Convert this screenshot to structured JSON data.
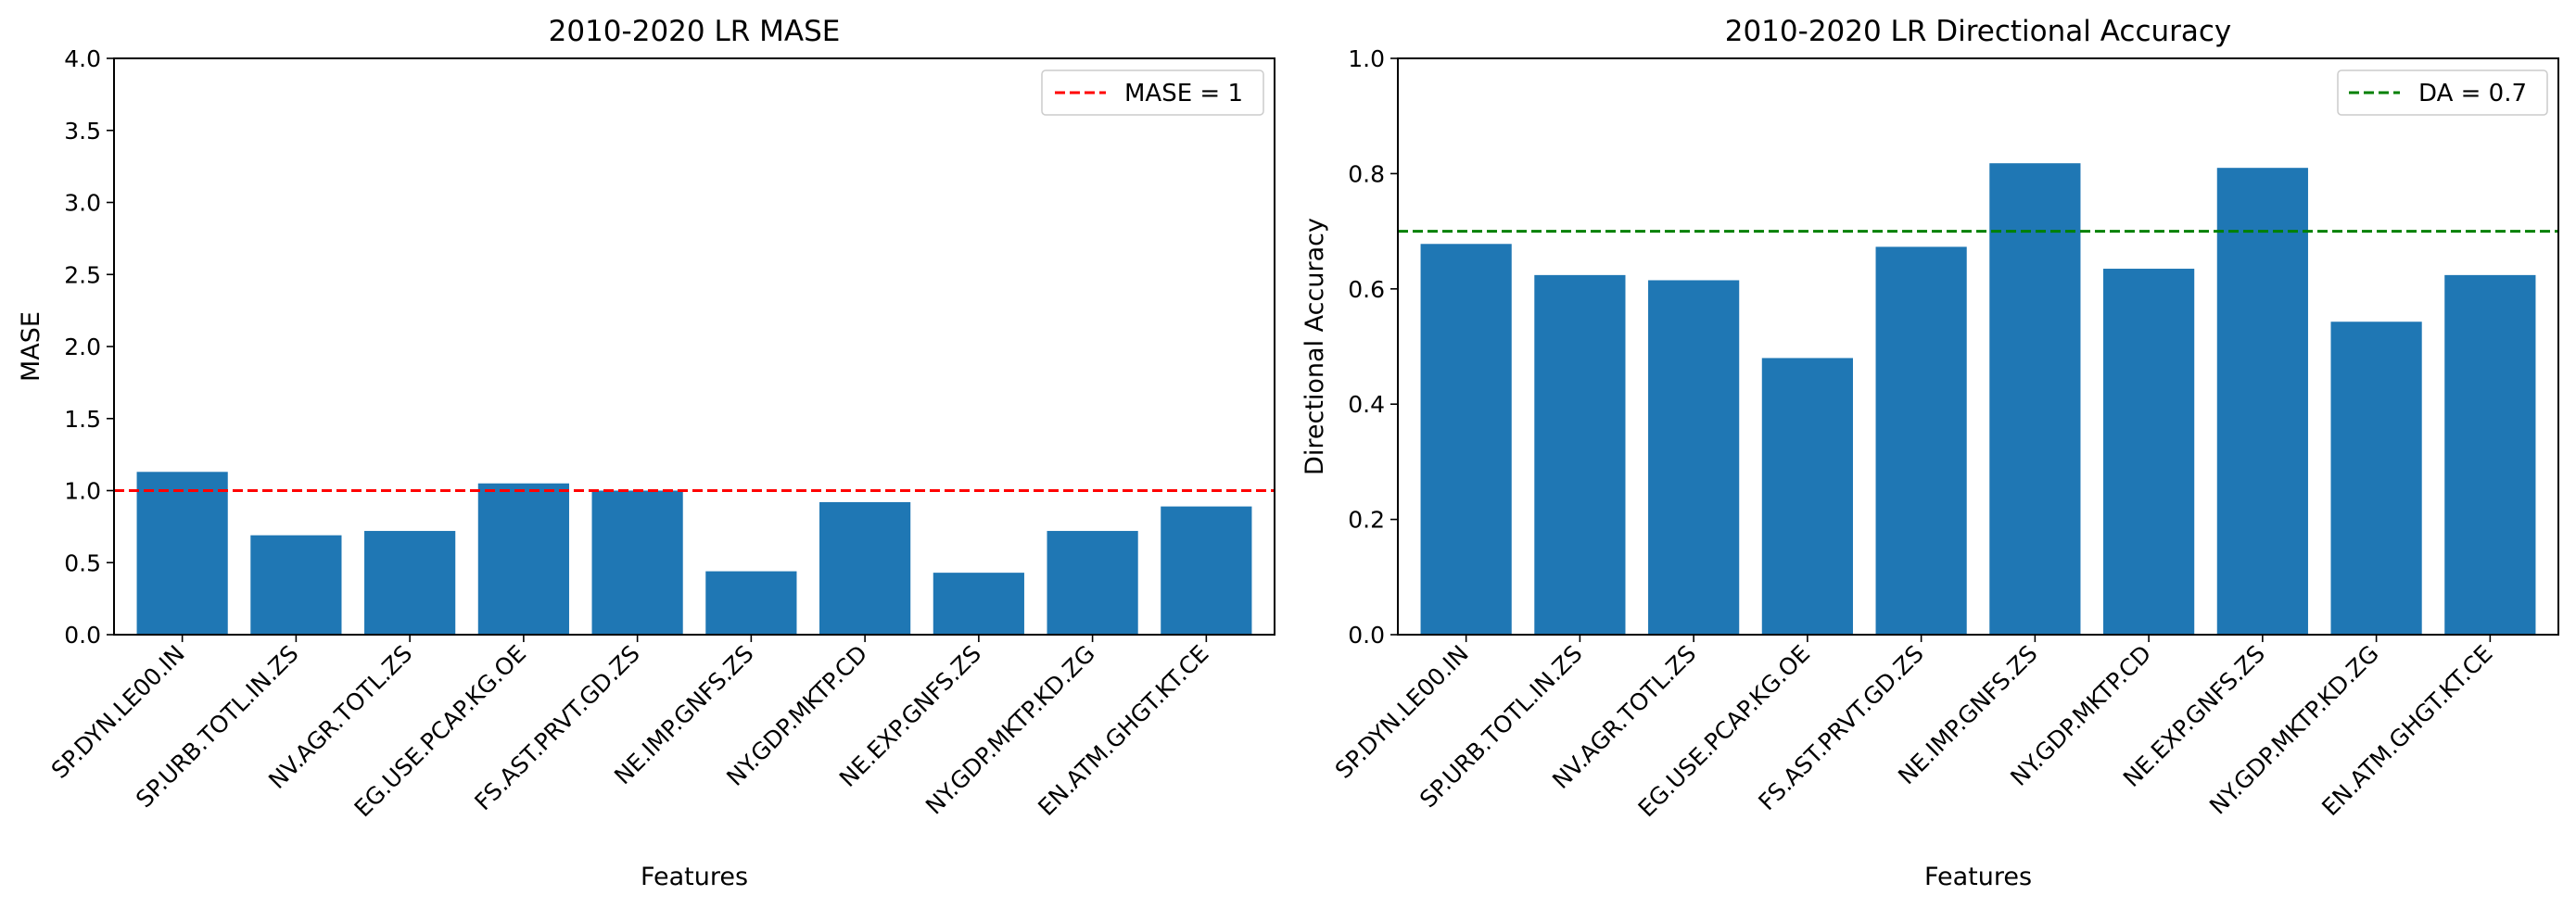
{
  "chart_data": [
    {
      "type": "bar",
      "title": "2010-2020 LR  MASE",
      "xlabel": "Features",
      "ylabel": "MASE",
      "ylim": [
        0,
        4
      ],
      "yticks": [
        "0.0",
        "0.5",
        "1.0",
        "1.5",
        "2.0",
        "2.5",
        "3.0",
        "3.5",
        "4.0"
      ],
      "categories": [
        "SP.DYN.LE00.IN",
        "SP.URB.TOTL.IN.ZS",
        "NV.AGR.TOTL.ZS",
        "EG.USE.PCAP.KG.OE",
        "FS.AST.PRVT.GD.ZS",
        "NE.IMP.GNFS.ZS",
        "NY.GDP.MKTP.CD",
        "NE.EXP.GNFS.ZS",
        "NY.GDP.MKTP.KD.ZG",
        "EN.ATM.GHGT.KT.CE"
      ],
      "values": [
        1.13,
        0.69,
        0.72,
        1.05,
        1.0,
        0.44,
        0.92,
        0.43,
        0.72,
        0.89
      ],
      "bar_color": "#1f77b4",
      "reference_line": {
        "value": 1,
        "color": "#ff0000",
        "label": "MASE = 1"
      },
      "legend_position": "upper right"
    },
    {
      "type": "bar",
      "title": "2010-2020 LR  Directional Accuracy",
      "xlabel": "Features",
      "ylabel": "Directional Accuracy",
      "ylim": [
        0,
        1
      ],
      "yticks": [
        "0.0",
        "0.2",
        "0.4",
        "0.6",
        "0.8",
        "1.0"
      ],
      "categories": [
        "SP.DYN.LE00.IN",
        "SP.URB.TOTL.IN.ZS",
        "NV.AGR.TOTL.ZS",
        "EG.USE.PCAP.KG.OE",
        "FS.AST.PRVT.GD.ZS",
        "NE.IMP.GNFS.ZS",
        "NY.GDP.MKTP.CD",
        "NE.EXP.GNFS.ZS",
        "NY.GDP.MKTP.KD.ZG",
        "EN.ATM.GHGT.KT.CE"
      ],
      "values": [
        0.678,
        0.624,
        0.615,
        0.48,
        0.673,
        0.818,
        0.635,
        0.81,
        0.543,
        0.624
      ],
      "bar_color": "#1f77b4",
      "reference_line": {
        "value": 0.7,
        "color": "#008000",
        "label": "DA = 0.7"
      },
      "legend_position": "upper right"
    }
  ]
}
